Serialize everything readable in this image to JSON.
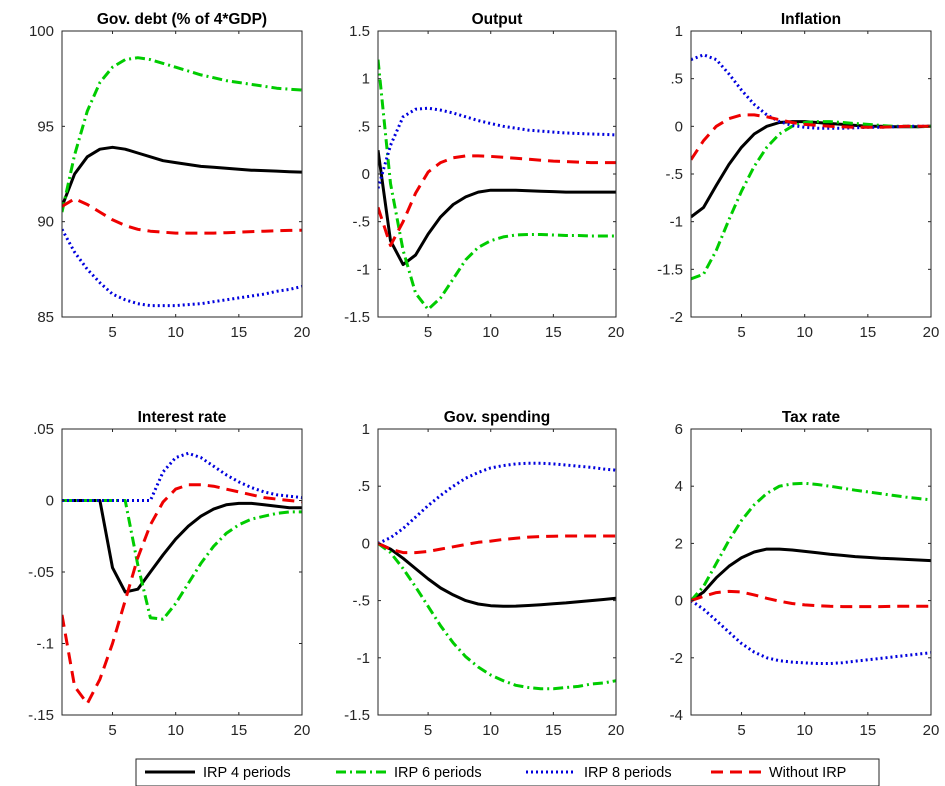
{
  "legend": [
    {
      "label": "IRP 4 periods",
      "series": "irp4"
    },
    {
      "label": "IRP 6 periods",
      "series": "irp6"
    },
    {
      "label": "IRP 8 periods",
      "series": "irp8"
    },
    {
      "label": "Without IRP",
      "series": "noirp"
    }
  ],
  "styles": {
    "irp4": {
      "color": "#000000",
      "dash": ""
    },
    "irp6": {
      "color": "#00cc00",
      "dash": "10,4,2,4"
    },
    "irp8": {
      "color": "#0000dd",
      "dash": "2,3"
    },
    "noirp": {
      "color": "#ee0000",
      "dash": "12,7"
    }
  },
  "chart_data": [
    {
      "type": "line",
      "title": "Gov. debt (% of 4*GDP)",
      "xlim": [
        1,
        20
      ],
      "ylim": [
        85,
        100
      ],
      "xticks": [
        5,
        10,
        15,
        20
      ],
      "yticks": [
        85,
        90,
        95,
        100
      ],
      "x": [
        1,
        2,
        3,
        4,
        5,
        6,
        7,
        8,
        9,
        10,
        11,
        12,
        13,
        14,
        15,
        16,
        17,
        18,
        19,
        20
      ],
      "series": [
        {
          "name": "IRP 4 periods",
          "key": "irp4",
          "values": [
            90.8,
            92.5,
            93.4,
            93.8,
            93.9,
            93.8,
            93.6,
            93.4,
            93.2,
            93.1,
            93.0,
            92.9,
            92.85,
            92.8,
            92.75,
            92.7,
            92.68,
            92.65,
            92.62,
            92.6
          ]
        },
        {
          "name": "IRP 6 periods",
          "key": "irp6",
          "values": [
            90.5,
            93.5,
            95.8,
            97.3,
            98.1,
            98.5,
            98.6,
            98.5,
            98.3,
            98.1,
            97.9,
            97.7,
            97.55,
            97.4,
            97.3,
            97.2,
            97.1,
            97.0,
            96.95,
            96.9
          ]
        },
        {
          "name": "IRP 8 periods",
          "key": "irp8",
          "values": [
            89.6,
            88.4,
            87.5,
            86.8,
            86.2,
            85.9,
            85.7,
            85.6,
            85.6,
            85.6,
            85.65,
            85.7,
            85.8,
            85.9,
            86.0,
            86.1,
            86.2,
            86.35,
            86.45,
            86.6
          ]
        },
        {
          "name": "Without IRP",
          "key": "noirp",
          "values": [
            90.8,
            91.2,
            90.9,
            90.5,
            90.1,
            89.8,
            89.6,
            89.5,
            89.45,
            89.4,
            89.4,
            89.4,
            89.4,
            89.42,
            89.45,
            89.48,
            89.5,
            89.52,
            89.54,
            89.55
          ]
        }
      ]
    },
    {
      "type": "line",
      "title": "Output",
      "xlim": [
        1,
        20
      ],
      "ylim": [
        -1.5,
        1.5
      ],
      "xticks": [
        5,
        10,
        15,
        20
      ],
      "yticks": [
        -1.5,
        -1,
        -0.5,
        0,
        0.5,
        1,
        1.5
      ],
      "x": [
        1,
        2,
        3,
        4,
        5,
        6,
        7,
        8,
        9,
        10,
        11,
        12,
        13,
        14,
        15,
        16,
        17,
        18,
        19,
        20
      ],
      "series": [
        {
          "name": "IRP 4 periods",
          "key": "irp4",
          "values": [
            0.25,
            -0.7,
            -0.95,
            -0.85,
            -0.63,
            -0.45,
            -0.32,
            -0.24,
            -0.19,
            -0.17,
            -0.17,
            -0.17,
            -0.175,
            -0.18,
            -0.185,
            -0.19,
            -0.19,
            -0.19,
            -0.19,
            -0.19
          ]
        },
        {
          "name": "IRP 6 periods",
          "key": "irp6",
          "values": [
            1.2,
            -0.1,
            -0.8,
            -1.25,
            -1.42,
            -1.3,
            -1.1,
            -0.9,
            -0.77,
            -0.7,
            -0.66,
            -0.64,
            -0.635,
            -0.635,
            -0.64,
            -0.645,
            -0.645,
            -0.65,
            -0.65,
            -0.65
          ]
        },
        {
          "name": "IRP 8 periods",
          "key": "irp8",
          "values": [
            -0.15,
            0.3,
            0.6,
            0.68,
            0.69,
            0.67,
            0.64,
            0.6,
            0.56,
            0.53,
            0.5,
            0.48,
            0.46,
            0.45,
            0.44,
            0.43,
            0.425,
            0.42,
            0.415,
            0.41
          ]
        },
        {
          "name": "Without IRP",
          "key": "noirp",
          "values": [
            -0.35,
            -0.75,
            -0.5,
            -0.2,
            0.02,
            0.12,
            0.17,
            0.19,
            0.19,
            0.185,
            0.175,
            0.165,
            0.155,
            0.145,
            0.135,
            0.13,
            0.125,
            0.12,
            0.12,
            0.12
          ]
        }
      ]
    },
    {
      "type": "line",
      "title": "Inflation",
      "xlim": [
        1,
        20
      ],
      "ylim": [
        -2,
        1
      ],
      "xticks": [
        5,
        10,
        15,
        20
      ],
      "yticks": [
        -2,
        -1.5,
        -1,
        -0.5,
        0,
        0.5,
        1
      ],
      "x": [
        1,
        2,
        3,
        4,
        5,
        6,
        7,
        8,
        9,
        10,
        11,
        12,
        13,
        14,
        15,
        16,
        17,
        18,
        19,
        20
      ],
      "series": [
        {
          "name": "IRP 4 periods",
          "key": "irp4",
          "values": [
            -0.95,
            -0.85,
            -0.62,
            -0.4,
            -0.22,
            -0.08,
            0.0,
            0.04,
            0.05,
            0.05,
            0.04,
            0.03,
            0.02,
            0.01,
            0.0,
            0.0,
            -0.005,
            -0.005,
            -0.005,
            0.0
          ]
        },
        {
          "name": "IRP 6 periods",
          "key": "irp6",
          "values": [
            -1.6,
            -1.55,
            -1.3,
            -0.98,
            -0.68,
            -0.42,
            -0.22,
            -0.08,
            0.0,
            0.04,
            0.05,
            0.05,
            0.04,
            0.03,
            0.02,
            0.01,
            0.0,
            0.0,
            -0.005,
            0.0
          ]
        },
        {
          "name": "IRP 8 periods",
          "key": "irp8",
          "values": [
            0.7,
            0.75,
            0.7,
            0.55,
            0.38,
            0.23,
            0.12,
            0.05,
            0.01,
            -0.01,
            -0.02,
            -0.02,
            -0.02,
            -0.015,
            -0.01,
            -0.01,
            -0.005,
            0.0,
            0.0,
            0.0
          ]
        },
        {
          "name": "Without IRP",
          "key": "noirp",
          "values": [
            -0.35,
            -0.15,
            0.0,
            0.08,
            0.12,
            0.12,
            0.1,
            0.07,
            0.04,
            0.02,
            0.01,
            0.0,
            -0.005,
            -0.01,
            -0.01,
            -0.01,
            -0.005,
            0.0,
            0.0,
            0.0
          ]
        }
      ]
    },
    {
      "type": "line",
      "title": "Interest rate",
      "xlim": [
        1,
        20
      ],
      "ylim": [
        -0.15,
        0.05
      ],
      "xticks": [
        5,
        10,
        15,
        20
      ],
      "yticks": [
        -0.15,
        -0.1,
        -0.05,
        0,
        0.05
      ],
      "x": [
        1,
        2,
        3,
        4,
        5,
        6,
        7,
        8,
        9,
        10,
        11,
        12,
        13,
        14,
        15,
        16,
        17,
        18,
        19,
        20
      ],
      "series": [
        {
          "name": "IRP 4 periods",
          "key": "irp4",
          "values": [
            0,
            0,
            0,
            0,
            -0.047,
            -0.064,
            -0.062,
            -0.05,
            -0.038,
            -0.027,
            -0.018,
            -0.011,
            -0.006,
            -0.003,
            -0.002,
            -0.002,
            -0.003,
            -0.004,
            -0.005,
            -0.005
          ]
        },
        {
          "name": "IRP 6 periods",
          "key": "irp6",
          "values": [
            0,
            0,
            0,
            0,
            0,
            0,
            -0.045,
            -0.082,
            -0.083,
            -0.072,
            -0.058,
            -0.044,
            -0.032,
            -0.023,
            -0.017,
            -0.013,
            -0.011,
            -0.009,
            -0.008,
            -0.008
          ]
        },
        {
          "name": "IRP 8 periods",
          "key": "irp8",
          "values": [
            0,
            0,
            0,
            0,
            0,
            0,
            0,
            0.0,
            0.02,
            0.03,
            0.033,
            0.03,
            0.024,
            0.018,
            0.013,
            0.009,
            0.006,
            0.004,
            0.003,
            0.002
          ]
        },
        {
          "name": "Without IRP",
          "key": "noirp",
          "values": [
            -0.08,
            -0.13,
            -0.142,
            -0.125,
            -0.1,
            -0.07,
            -0.04,
            -0.017,
            -0.001,
            0.008,
            0.011,
            0.011,
            0.01,
            0.008,
            0.006,
            0.004,
            0.002,
            0.001,
            0.0,
            -0.001
          ]
        }
      ]
    },
    {
      "type": "line",
      "title": "Gov. spending",
      "xlim": [
        1,
        20
      ],
      "ylim": [
        -1.5,
        1
      ],
      "xticks": [
        5,
        10,
        15,
        20
      ],
      "yticks": [
        -1.5,
        -1,
        -0.5,
        0,
        0.5,
        1
      ],
      "x": [
        1,
        2,
        3,
        4,
        5,
        6,
        7,
        8,
        9,
        10,
        11,
        12,
        13,
        14,
        15,
        16,
        17,
        18,
        19,
        20
      ],
      "series": [
        {
          "name": "IRP 4 periods",
          "key": "irp4",
          "values": [
            0,
            -0.05,
            -0.13,
            -0.22,
            -0.31,
            -0.39,
            -0.45,
            -0.5,
            -0.53,
            -0.545,
            -0.55,
            -0.548,
            -0.543,
            -0.536,
            -0.528,
            -0.52,
            -0.51,
            -0.5,
            -0.49,
            -0.48
          ]
        },
        {
          "name": "IRP 6 periods",
          "key": "irp6",
          "values": [
            0,
            -0.08,
            -0.22,
            -0.38,
            -0.55,
            -0.72,
            -0.87,
            -0.99,
            -1.08,
            -1.15,
            -1.2,
            -1.24,
            -1.26,
            -1.27,
            -1.27,
            -1.26,
            -1.25,
            -1.23,
            -1.22,
            -1.2
          ]
        },
        {
          "name": "IRP 8 periods",
          "key": "irp8",
          "values": [
            0,
            0.05,
            0.13,
            0.23,
            0.33,
            0.42,
            0.5,
            0.57,
            0.62,
            0.66,
            0.68,
            0.695,
            0.7,
            0.7,
            0.695,
            0.685,
            0.675,
            0.665,
            0.65,
            0.64
          ]
        },
        {
          "name": "Without IRP",
          "key": "noirp",
          "values": [
            0,
            -0.05,
            -0.08,
            -0.08,
            -0.07,
            -0.05,
            -0.03,
            -0.01,
            0.01,
            0.02,
            0.035,
            0.045,
            0.055,
            0.06,
            0.063,
            0.065,
            0.065,
            0.065,
            0.065,
            0.065
          ]
        }
      ]
    },
    {
      "type": "line",
      "title": "Tax rate",
      "xlim": [
        1,
        20
      ],
      "ylim": [
        -4,
        6
      ],
      "xticks": [
        5,
        10,
        15,
        20
      ],
      "yticks": [
        -4,
        -2,
        0,
        2,
        4,
        6
      ],
      "x": [
        1,
        2,
        3,
        4,
        5,
        6,
        7,
        8,
        9,
        10,
        11,
        12,
        13,
        14,
        15,
        16,
        17,
        18,
        19,
        20
      ],
      "series": [
        {
          "name": "IRP 4 periods",
          "key": "irp4",
          "values": [
            0,
            0.3,
            0.8,
            1.2,
            1.5,
            1.7,
            1.8,
            1.8,
            1.77,
            1.72,
            1.67,
            1.62,
            1.58,
            1.54,
            1.51,
            1.48,
            1.46,
            1.44,
            1.42,
            1.4
          ]
        },
        {
          "name": "IRP 6 periods",
          "key": "irp6",
          "values": [
            0,
            0.5,
            1.3,
            2.1,
            2.8,
            3.35,
            3.75,
            4.0,
            4.08,
            4.1,
            4.06,
            4.0,
            3.93,
            3.86,
            3.8,
            3.74,
            3.68,
            3.62,
            3.57,
            3.52
          ]
        },
        {
          "name": "IRP 8 periods",
          "key": "irp8",
          "values": [
            0,
            -0.3,
            -0.7,
            -1.1,
            -1.5,
            -1.8,
            -2.0,
            -2.1,
            -2.15,
            -2.18,
            -2.2,
            -2.2,
            -2.17,
            -2.12,
            -2.07,
            -2.02,
            -1.97,
            -1.92,
            -1.87,
            -1.82
          ]
        },
        {
          "name": "Without IRP",
          "key": "noirp",
          "values": [
            0,
            0.15,
            0.28,
            0.32,
            0.3,
            0.2,
            0.08,
            -0.02,
            -0.1,
            -0.15,
            -0.18,
            -0.2,
            -0.21,
            -0.21,
            -0.21,
            -0.21,
            -0.2,
            -0.2,
            -0.2,
            -0.2
          ]
        }
      ]
    }
  ]
}
